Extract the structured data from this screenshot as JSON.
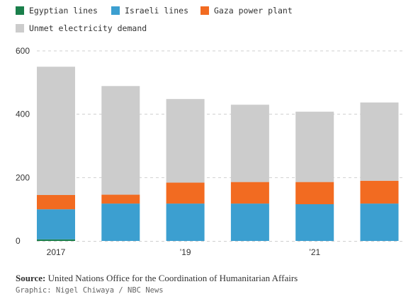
{
  "chart_data": {
    "type": "bar",
    "stacked": true,
    "categories": [
      "2017",
      "",
      "’19",
      "",
      "’21",
      ""
    ],
    "series": [
      {
        "name": "Egyptian lines",
        "color": "#1a7f4b",
        "values": [
          5,
          0,
          0,
          0,
          0,
          0
        ]
      },
      {
        "name": "Israeli lines",
        "color": "#3c9fd0",
        "values": [
          95,
          118,
          118,
          118,
          116,
          118
        ]
      },
      {
        "name": "Gaza power plant",
        "color": "#f26b21",
        "values": [
          45,
          28,
          66,
          68,
          70,
          72
        ]
      },
      {
        "name": "Unmet electricity demand",
        "color": "#cccccc",
        "values": [
          405,
          343,
          264,
          244,
          222,
          247
        ]
      }
    ],
    "yticks": [
      0,
      200,
      400,
      600
    ],
    "ylim": [
      0,
      600
    ],
    "grid": true,
    "legend_position": "top-left"
  },
  "source": {
    "label": "Source:",
    "text": "United Nations Office for the Coordination of Humanitarian Affairs"
  },
  "credit": "Graphic: Nigel Chiwaya / NBC News"
}
